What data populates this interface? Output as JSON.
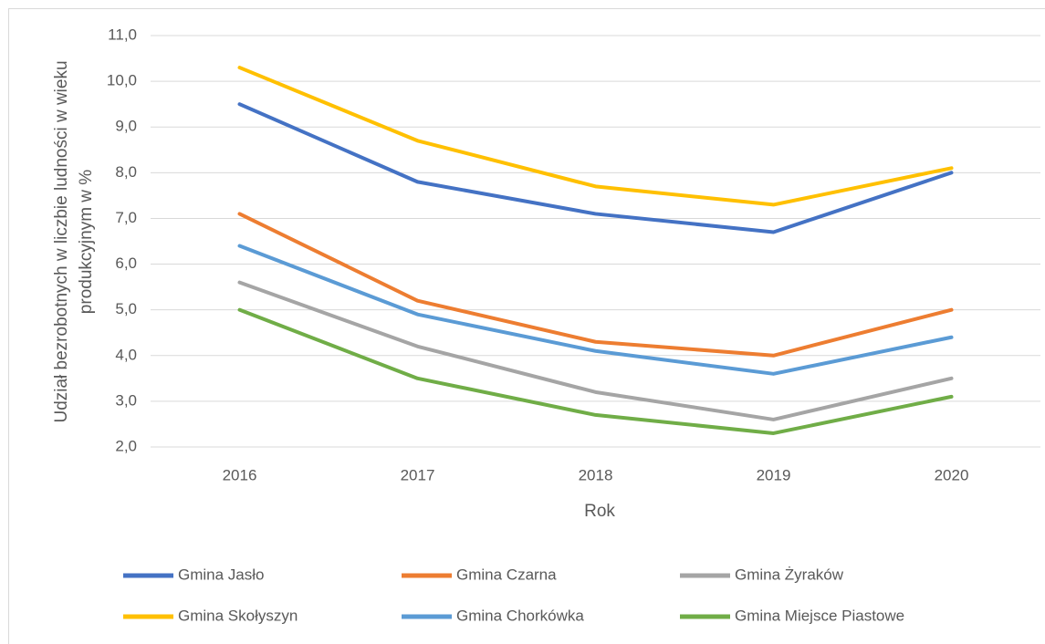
{
  "chart_data": {
    "type": "line",
    "ylabel": [
      "Udział bezrobotnych w liczbie ludności w wieku",
      "produkcyjnym w %"
    ],
    "xlabel": "Rok",
    "categories": [
      "2016",
      "2017",
      "2018",
      "2019",
      "2020"
    ],
    "series": [
      {
        "name": "Gmina Jasło",
        "color": "#4472c4",
        "values": [
          9.5,
          7.8,
          7.1,
          6.7,
          8.0
        ]
      },
      {
        "name": "Gmina Czarna",
        "color": "#ed7d31",
        "values": [
          7.1,
          5.2,
          4.3,
          4.0,
          5.0
        ]
      },
      {
        "name": "Gmina Żyraków",
        "color": "#a5a5a5",
        "values": [
          5.6,
          4.2,
          3.2,
          2.6,
          3.5
        ]
      },
      {
        "name": "Gmina Skołyszyn",
        "color": "#ffc000",
        "values": [
          10.3,
          8.7,
          7.7,
          7.3,
          8.1
        ]
      },
      {
        "name": "Gmina Chorkówka",
        "color": "#5b9bd5",
        "values": [
          6.4,
          4.9,
          4.1,
          3.6,
          4.4
        ]
      },
      {
        "name": "Gmina Miejsce Piastowe",
        "color": "#70ad47",
        "values": [
          5.0,
          3.5,
          2.7,
          2.3,
          3.1
        ]
      }
    ],
    "ylim": [
      2,
      11
    ],
    "yticks": [
      {
        "value": 2,
        "label": "2,0"
      },
      {
        "value": 3,
        "label": "3,0"
      },
      {
        "value": 4,
        "label": "4,0"
      },
      {
        "value": 5,
        "label": "5,0"
      },
      {
        "value": 6,
        "label": "6,0"
      },
      {
        "value": 7,
        "label": "7,0"
      },
      {
        "value": 8,
        "label": "8,0"
      },
      {
        "value": 9,
        "label": "9,0"
      },
      {
        "value": 10,
        "label": "10,0"
      },
      {
        "value": 11,
        "label": "11,0"
      }
    ],
    "grid": true,
    "legend": "bottom"
  }
}
